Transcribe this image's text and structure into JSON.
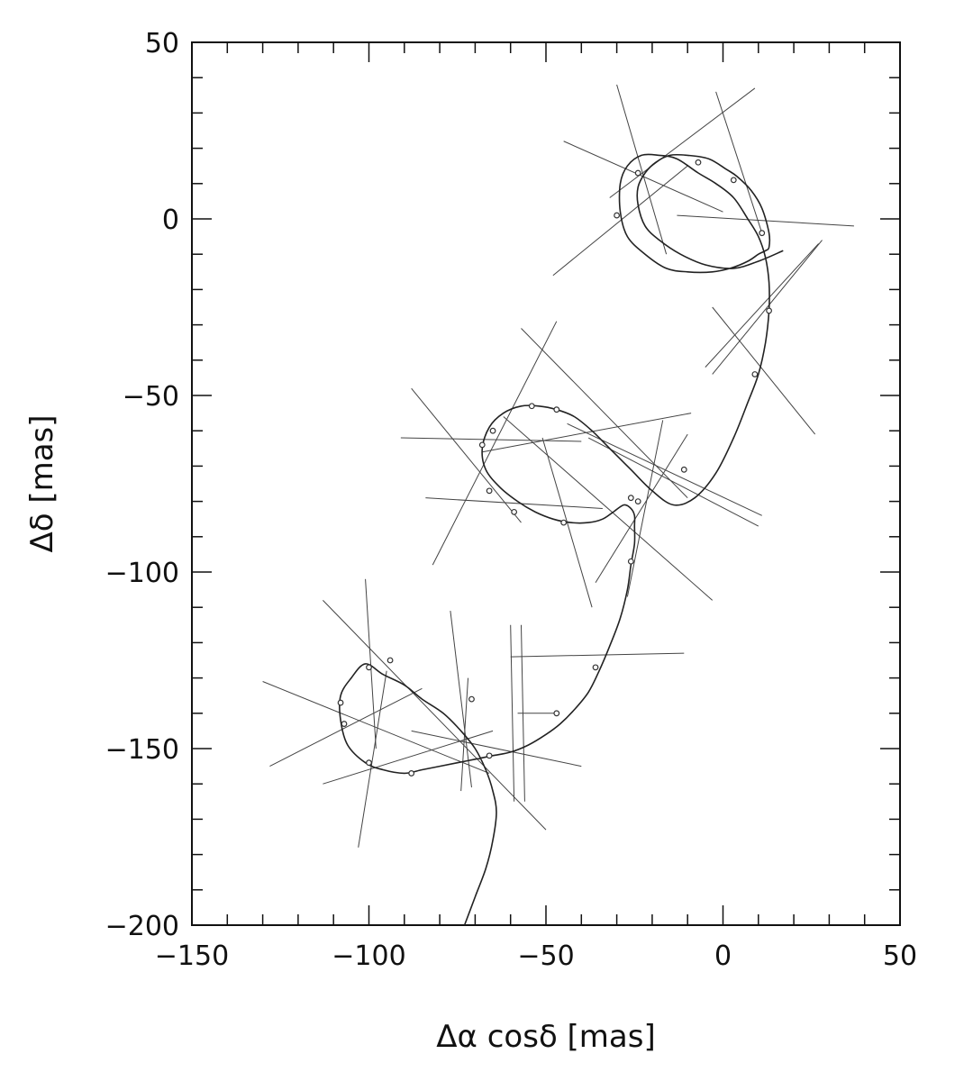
{
  "chart_data": {
    "type": "line",
    "title": "",
    "xlabel": "Δα cosδ [mas]",
    "ylabel": "Δδ [mas]",
    "xlim": [
      -150,
      50
    ],
    "ylim": [
      -200,
      50
    ],
    "xticks_major": [
      -150,
      -100,
      -50,
      0,
      50
    ],
    "xtick_labels": [
      "−150",
      "−100",
      "−50",
      "0",
      "50"
    ],
    "yticks_major": [
      -200,
      -150,
      -100,
      -50,
      0,
      50
    ],
    "ytick_labels": [
      "−200",
      "−150",
      "−100",
      "−50",
      "0",
      "50"
    ],
    "minor_tick_step_x": 10,
    "minor_tick_step_y": 10,
    "grid": false,
    "series": [
      {
        "type": "orbit",
        "x": [
          -73,
          -70,
          -67,
          -65,
          -64,
          -65,
          -67,
          -70,
          -74,
          -79,
          -85,
          -90,
          -96,
          -101,
          -105,
          -108,
          -108,
          -106,
          -101,
          -96,
          -90,
          -85,
          -80,
          -75,
          -70,
          -65,
          -60,
          -55,
          -50,
          -46,
          -42,
          -38,
          -35,
          -32,
          -29,
          -27,
          -26,
          -25,
          -25,
          -25,
          -26,
          -28,
          -31,
          -34,
          -38,
          -43,
          -48,
          -53,
          -58,
          -63,
          -67,
          -68,
          -66,
          -62,
          -57,
          -52,
          -47,
          -42,
          -37,
          -32,
          -26,
          -20,
          -14,
          -8,
          -2,
          3,
          7,
          10,
          12,
          13,
          13,
          12,
          10,
          7,
          3,
          -2,
          -7,
          -13,
          -18,
          -23,
          -27,
          -29,
          -29,
          -27,
          -22,
          -16,
          -10,
          -3,
          2,
          7,
          10,
          12,
          13,
          13,
          11,
          8,
          4,
          1,
          -4,
          -10,
          -15,
          -19,
          -22,
          -24,
          -24,
          -22,
          -18,
          -12,
          -5,
          3,
          10,
          17
        ],
        "y": [
          -200,
          -192,
          -184,
          -176,
          -168,
          -162,
          -156,
          -150,
          -145,
          -140,
          -136,
          -132,
          -129,
          -126,
          -130,
          -135,
          -142,
          -149,
          -154,
          -156,
          -157,
          -156,
          -155,
          -154,
          -153,
          -152,
          -151,
          -149,
          -146,
          -143,
          -139,
          -134,
          -128,
          -121,
          -113,
          -105,
          -98,
          -92,
          -87,
          -84,
          -82,
          -81,
          -83,
          -85,
          -86,
          -86,
          -85,
          -83,
          -80,
          -76,
          -71,
          -65,
          -59,
          -55,
          -53,
          -53,
          -54,
          -56,
          -60,
          -65,
          -71,
          -77,
          -81,
          -79,
          -72,
          -62,
          -52,
          -44,
          -35,
          -26,
          -18,
          -11,
          -5,
          0,
          6,
          10,
          13,
          17,
          18,
          18,
          15,
          10,
          2,
          -5,
          -10,
          -14,
          -15,
          -15,
          -14,
          -12,
          -10,
          -9,
          -8,
          -4,
          3,
          8,
          12,
          14,
          17,
          18,
          18,
          16,
          13,
          9,
          4,
          -2,
          -6,
          -10,
          -13,
          -14,
          -12,
          -9
        ]
      }
    ],
    "measurement_points": [
      {
        "x": -108,
        "y": -137
      },
      {
        "x": -107,
        "y": -143
      },
      {
        "x": -100,
        "y": -154
      },
      {
        "x": -88,
        "y": -157
      },
      {
        "x": -100,
        "y": -127
      },
      {
        "x": -94,
        "y": -125
      },
      {
        "x": -71,
        "y": -136
      },
      {
        "x": -66,
        "y": -152
      },
      {
        "x": -47,
        "y": -140
      },
      {
        "x": -36,
        "y": -127
      },
      {
        "x": -26,
        "y": -97
      },
      {
        "x": -24,
        "y": -80
      },
      {
        "x": -11,
        "y": -71
      },
      {
        "x": -26,
        "y": -79
      },
      {
        "x": -45,
        "y": -86
      },
      {
        "x": -59,
        "y": -83
      },
      {
        "x": -66,
        "y": -77
      },
      {
        "x": -68,
        "y": -64
      },
      {
        "x": -65,
        "y": -60
      },
      {
        "x": -54,
        "y": -53
      },
      {
        "x": -47,
        "y": -54
      },
      {
        "x": 9,
        "y": -44
      },
      {
        "x": 13,
        "y": -26
      },
      {
        "x": 11,
        "y": -4
      },
      {
        "x": 3,
        "y": 11
      },
      {
        "x": -7,
        "y": 16
      },
      {
        "x": -24,
        "y": 13
      },
      {
        "x": -30,
        "y": 1
      }
    ],
    "error_lines": [
      {
        "x1": -130,
        "y1": -131,
        "x2": -66,
        "y2": -157
      },
      {
        "x1": -128,
        "y1": -155,
        "x2": -85,
        "y2": -133
      },
      {
        "x1": -113,
        "y1": -108,
        "x2": -50,
        "y2": -173
      },
      {
        "x1": -113,
        "y1": -160,
        "x2": -65,
        "y2": -145
      },
      {
        "x1": -101,
        "y1": -102,
        "x2": -98,
        "y2": -150
      },
      {
        "x1": -103,
        "y1": -178,
        "x2": -95,
        "y2": -128
      },
      {
        "x1": -77,
        "y1": -111,
        "x2": -71,
        "y2": -161
      },
      {
        "x1": -74,
        "y1": -162,
        "x2": -72,
        "y2": -130
      },
      {
        "x1": -88,
        "y1": -145,
        "x2": -40,
        "y2": -155
      },
      {
        "x1": -60,
        "y1": -115,
        "x2": -59,
        "y2": -165
      },
      {
        "x1": -57,
        "y1": -115,
        "x2": -56,
        "y2": -165
      },
      {
        "x1": -60,
        "y1": -124,
        "x2": -11,
        "y2": -123
      },
      {
        "x1": -58,
        "y1": -140,
        "x2": -47,
        "y2": -140
      },
      {
        "x1": -91,
        "y1": -62,
        "x2": -40,
        "y2": -63
      },
      {
        "x1": -84,
        "y1": -79,
        "x2": -34,
        "y2": -82
      },
      {
        "x1": -88,
        "y1": -48,
        "x2": -57,
        "y2": -86
      },
      {
        "x1": -82,
        "y1": -98,
        "x2": -47,
        "y2": -29
      },
      {
        "x1": -57,
        "y1": -31,
        "x2": -10,
        "y2": -79
      },
      {
        "x1": -68,
        "y1": -66,
        "x2": -9,
        "y2": -55
      },
      {
        "x1": -51,
        "y1": -62,
        "x2": -37,
        "y2": -110
      },
      {
        "x1": -62,
        "y1": -56,
        "x2": -3,
        "y2": -108
      },
      {
        "x1": -36,
        "y1": -103,
        "x2": -10,
        "y2": -61
      },
      {
        "x1": -27,
        "y1": -107,
        "x2": -17,
        "y2": -57
      },
      {
        "x1": -44,
        "y1": -58,
        "x2": 11,
        "y2": -84
      },
      {
        "x1": -38,
        "y1": -62,
        "x2": 10,
        "y2": -87
      },
      {
        "x1": -3,
        "y1": -25,
        "x2": 26,
        "y2": -61
      },
      {
        "x1": -5,
        "y1": -42,
        "x2": 27,
        "y2": -7
      },
      {
        "x1": -3,
        "y1": -44,
        "x2": 28,
        "y2": -6
      },
      {
        "x1": -45,
        "y1": 22,
        "x2": 0,
        "y2": 2
      },
      {
        "x1": -48,
        "y1": -16,
        "x2": -10,
        "y2": 15
      },
      {
        "x1": -30,
        "y1": 38,
        "x2": -16,
        "y2": -10
      },
      {
        "x1": -32,
        "y1": 6,
        "x2": 9,
        "y2": 37
      },
      {
        "x1": -2,
        "y1": 36,
        "x2": 11,
        "y2": -4
      },
      {
        "x1": -13,
        "y1": 1,
        "x2": 37,
        "y2": -2
      }
    ]
  }
}
